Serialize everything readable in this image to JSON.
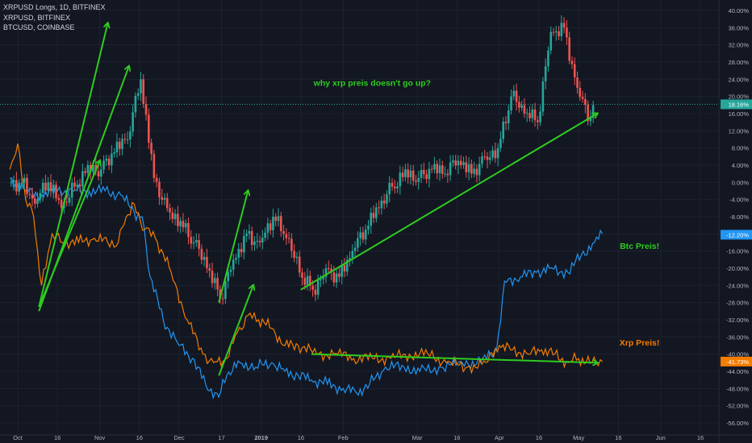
{
  "legend": {
    "line1": "XRPUSD Longs, 1D, BITFINEX",
    "line2": "XRPUSD, BITFINEX",
    "line3": "BTCUSD, COINBASE"
  },
  "colors": {
    "background": "#131722",
    "grid": "#1e2230",
    "up": "#26a69a",
    "down": "#ef5350",
    "btc": "#2196f3",
    "xrp": "#f57c00",
    "annotation": "#2ecc1f",
    "axis_text": "#b2b5be",
    "current_line": "#26a69a"
  },
  "chart_data": {
    "type": "line",
    "title": "XRPUSD Longs, 1D, BITFINEX",
    "y_unit": "%",
    "ylim": [
      -58,
      42
    ],
    "x_axis": {
      "ticks": [
        "Oct",
        "16",
        "Nov",
        "16",
        "Dec",
        "17",
        "2019",
        "16",
        "Feb",
        "Mar",
        "16",
        "Apr",
        "16",
        "May",
        "16",
        "Jun",
        "16"
      ],
      "tick_dates": [
        "2018-10-01",
        "2018-10-16",
        "2018-11-01",
        "2018-11-16",
        "2018-12-01",
        "2018-12-17",
        "2019-01-01",
        "2019-01-16",
        "2019-02-01",
        "2019-03-01",
        "2019-03-16",
        "2019-04-01",
        "2019-04-16",
        "2019-05-01",
        "2019-05-16",
        "2019-06-01",
        "2019-06-16"
      ]
    },
    "y_axis": {
      "ticks": [
        "40.00%",
        "36.00%",
        "32.00%",
        "28.00%",
        "24.00%",
        "20.00%",
        "16.00%",
        "12.00%",
        "8.00%",
        "4.00%",
        "0.00%",
        "-4.00%",
        "-8.00%",
        "-12.00%",
        "-16.00%",
        "-20.00%",
        "-24.00%",
        "-28.00%",
        "-32.00%",
        "-36.00%",
        "-40.00%",
        "-44.00%",
        "-48.00%",
        "-52.00%",
        "-56.00%"
      ]
    },
    "current_labels": [
      {
        "text": "18.16%",
        "value": 18.16,
        "color": "#26a69a"
      },
      {
        "text": "-12.20%",
        "value": -12.2,
        "color": "#2196f3"
      },
      {
        "text": "-41.73%",
        "value": -41.73,
        "color": "#f57c00"
      }
    ],
    "candles_xrpusd_longs": [
      {
        "t": "2018-09-28",
        "o": 0,
        "c": 0
      },
      {
        "t": "2018-10-03",
        "o": 0,
        "c": -5
      },
      {
        "t": "2018-10-08",
        "o": -5,
        "c": 0
      },
      {
        "t": "2018-10-13",
        "o": 0,
        "c": -6
      },
      {
        "t": "2018-10-18",
        "o": -6,
        "c": -1
      },
      {
        "t": "2018-10-23",
        "o": -1,
        "c": 4
      },
      {
        "t": "2018-10-28",
        "o": 4,
        "c": 3
      },
      {
        "t": "2018-11-02",
        "o": 3,
        "c": 7
      },
      {
        "t": "2018-11-07",
        "o": 7,
        "c": 10
      },
      {
        "t": "2018-11-12",
        "o": 10,
        "c": 24
      },
      {
        "t": "2018-11-17",
        "o": 24,
        "c": 1
      },
      {
        "t": "2018-11-22",
        "o": 1,
        "c": -6
      },
      {
        "t": "2018-11-27",
        "o": -6,
        "c": -9
      },
      {
        "t": "2018-12-02",
        "o": -9,
        "c": -14
      },
      {
        "t": "2018-12-07",
        "o": -14,
        "c": -20
      },
      {
        "t": "2018-12-12",
        "o": -20,
        "c": -27
      },
      {
        "t": "2018-12-17",
        "o": -27,
        "c": -18
      },
      {
        "t": "2018-12-22",
        "o": -18,
        "c": -12
      },
      {
        "t": "2018-12-27",
        "o": -12,
        "c": -14
      },
      {
        "t": "2019-01-01",
        "o": -14,
        "c": -8
      },
      {
        "t": "2019-01-06",
        "o": -8,
        "c": -13
      },
      {
        "t": "2019-01-11",
        "o": -13,
        "c": -21
      },
      {
        "t": "2019-01-16",
        "o": -21,
        "c": -25
      },
      {
        "t": "2019-01-21",
        "o": -25,
        "c": -20
      },
      {
        "t": "2019-01-26",
        "o": -20,
        "c": -22
      },
      {
        "t": "2019-01-31",
        "o": -22,
        "c": -16
      },
      {
        "t": "2019-02-05",
        "o": -16,
        "c": -11
      },
      {
        "t": "2019-02-10",
        "o": -11,
        "c": -6
      },
      {
        "t": "2019-02-15",
        "o": -6,
        "c": -1
      },
      {
        "t": "2019-02-20",
        "o": -1,
        "c": 3
      },
      {
        "t": "2019-02-25",
        "o": 3,
        "c": 1
      },
      {
        "t": "2019-03-02",
        "o": 1,
        "c": 3
      },
      {
        "t": "2019-03-07",
        "o": 3,
        "c": 2
      },
      {
        "t": "2019-03-12",
        "o": 2,
        "c": 5
      },
      {
        "t": "2019-03-17",
        "o": 5,
        "c": 2
      },
      {
        "t": "2019-03-22",
        "o": 2,
        "c": 6
      },
      {
        "t": "2019-03-27",
        "o": 6,
        "c": 8
      },
      {
        "t": "2019-04-01",
        "o": 8,
        "c": 20
      },
      {
        "t": "2019-04-06",
        "o": 20,
        "c": 16
      },
      {
        "t": "2019-04-11",
        "o": 16,
        "c": 14
      },
      {
        "t": "2019-04-16",
        "o": 14,
        "c": 35
      },
      {
        "t": "2019-04-21",
        "o": 35,
        "c": 36
      },
      {
        "t": "2019-04-26",
        "o": 36,
        "c": 22
      },
      {
        "t": "2019-05-01",
        "o": 22,
        "c": 15
      },
      {
        "t": "2019-05-06",
        "o": 15,
        "c": 18
      }
    ],
    "series": [
      {
        "name": "BTCUSD, COINBASE",
        "color": "#2196f3",
        "points": [
          [
            "2018-09-28",
            1
          ],
          [
            "2018-10-04",
            -2
          ],
          [
            "2018-10-10",
            -3
          ],
          [
            "2018-10-16",
            -2
          ],
          [
            "2018-10-22",
            -2
          ],
          [
            "2018-10-28",
            -2
          ],
          [
            "2018-11-03",
            -2
          ],
          [
            "2018-11-09",
            -3
          ],
          [
            "2018-11-14",
            -7
          ],
          [
            "2018-11-17",
            -8
          ],
          [
            "2018-11-20",
            -22
          ],
          [
            "2018-11-25",
            -32
          ],
          [
            "2018-12-01",
            -38
          ],
          [
            "2018-12-06",
            -41
          ],
          [
            "2018-12-11",
            -47
          ],
          [
            "2018-12-16",
            -50
          ],
          [
            "2018-12-19",
            -45
          ],
          [
            "2018-12-24",
            -42
          ],
          [
            "2018-12-30",
            -43
          ],
          [
            "2019-01-05",
            -42
          ],
          [
            "2019-01-10",
            -44
          ],
          [
            "2019-01-15",
            -45
          ],
          [
            "2019-01-20",
            -46
          ],
          [
            "2019-01-26",
            -47
          ],
          [
            "2019-02-01",
            -48
          ],
          [
            "2019-02-06",
            -49
          ],
          [
            "2019-02-11",
            -47
          ],
          [
            "2019-02-17",
            -43
          ],
          [
            "2019-02-24",
            -43
          ],
          [
            "2019-03-02",
            -44
          ],
          [
            "2019-03-10",
            -43
          ],
          [
            "2019-03-18",
            -42
          ],
          [
            "2019-03-25",
            -42
          ],
          [
            "2019-03-31",
            -39
          ],
          [
            "2019-04-03",
            -23
          ],
          [
            "2019-04-09",
            -22
          ],
          [
            "2019-04-15",
            -21
          ],
          [
            "2019-04-20",
            -20
          ],
          [
            "2019-04-27",
            -21
          ],
          [
            "2019-05-02",
            -17
          ],
          [
            "2019-05-07",
            -14
          ],
          [
            "2019-05-10",
            -12
          ]
        ]
      },
      {
        "name": "XRPUSD, BITFINEX",
        "color": "#f57c00",
        "points": [
          [
            "2018-09-28",
            3
          ],
          [
            "2018-10-01",
            9
          ],
          [
            "2018-10-04",
            -4
          ],
          [
            "2018-10-07",
            -8
          ],
          [
            "2018-10-10",
            -24
          ],
          [
            "2018-10-14",
            -12
          ],
          [
            "2018-10-18",
            -14
          ],
          [
            "2018-10-24",
            -14
          ],
          [
            "2018-10-30",
            -13
          ],
          [
            "2018-11-04",
            -14
          ],
          [
            "2018-11-08",
            -14
          ],
          [
            "2018-11-11",
            -8
          ],
          [
            "2018-11-14",
            -5
          ],
          [
            "2018-11-18",
            -11
          ],
          [
            "2018-11-22",
            -13
          ],
          [
            "2018-11-28",
            -21
          ],
          [
            "2018-12-04",
            -32
          ],
          [
            "2018-12-10",
            -40
          ],
          [
            "2018-12-14",
            -42
          ],
          [
            "2018-12-19",
            -41
          ],
          [
            "2018-12-23",
            -35
          ],
          [
            "2018-12-27",
            -31
          ],
          [
            "2018-12-31",
            -32
          ],
          [
            "2019-01-05",
            -34
          ],
          [
            "2019-01-10",
            -38
          ],
          [
            "2019-01-15",
            -38
          ],
          [
            "2019-01-22",
            -40
          ],
          [
            "2019-01-30",
            -40
          ],
          [
            "2019-02-05",
            -41
          ],
          [
            "2019-02-12",
            -41
          ],
          [
            "2019-02-19",
            -41
          ],
          [
            "2019-02-26",
            -40
          ],
          [
            "2019-03-05",
            -40
          ],
          [
            "2019-03-12",
            -42
          ],
          [
            "2019-03-20",
            -43
          ],
          [
            "2019-03-27",
            -42
          ],
          [
            "2019-04-01",
            -38
          ],
          [
            "2019-04-06",
            -39
          ],
          [
            "2019-04-12",
            -40
          ],
          [
            "2019-04-17",
            -39
          ],
          [
            "2019-04-22",
            -40
          ],
          [
            "2019-04-27",
            -42
          ],
          [
            "2019-05-01",
            -41
          ],
          [
            "2019-05-06",
            -42
          ],
          [
            "2019-05-10",
            -41.73
          ]
        ]
      }
    ],
    "annotations": [
      {
        "text": "why xrp preis doesn't go up?",
        "x": "2019-02-12",
        "y": 22.5
      },
      {
        "text": "Btc Preis!",
        "x": "2019-05-24",
        "y": -15.5
      },
      {
        "text": "Xrp Preis!",
        "x": "2019-05-24",
        "y": -38
      }
    ]
  }
}
